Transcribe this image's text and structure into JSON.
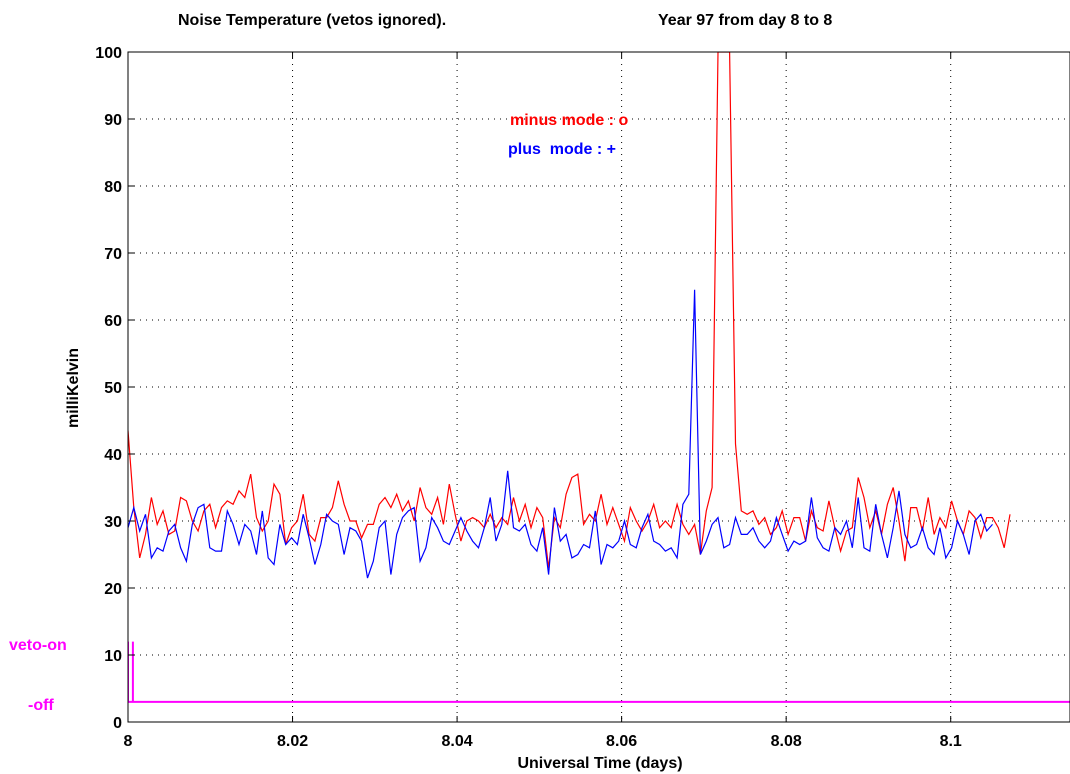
{
  "header": {
    "title": "Noise Temperature (vetos ignored).",
    "period": "Year 97 from day 8 to 8"
  },
  "veto_labels": {
    "on": "veto-on",
    "off": "-off"
  },
  "colors": {
    "minus": "#ff0000",
    "plus": "#0000ff",
    "veto": "#ff00ff",
    "axis": "#000000",
    "grid": "#000000"
  },
  "chart_data": {
    "type": "line",
    "xlabel": "Universal Time (days)",
    "ylabel": "milliKelvin",
    "xlim": [
      8,
      8.1145
    ],
    "ylim": [
      0,
      100
    ],
    "xticks": [
      8,
      8.02,
      8.04,
      8.06,
      8.08,
      8.1
    ],
    "xtick_labels": [
      "8",
      "8.02",
      "8.04",
      "8.06",
      "8.08",
      "8.1"
    ],
    "yticks": [
      0,
      10,
      20,
      30,
      40,
      50,
      60,
      70,
      80,
      90,
      100
    ],
    "ytick_labels": [
      "0",
      "10",
      "20",
      "30",
      "40",
      "50",
      "60",
      "70",
      "80",
      "90",
      "100"
    ],
    "grid": true,
    "legend": [
      {
        "text": "minus mode : o",
        "color": "#ff0000"
      },
      {
        "text": "plus  mode : +",
        "color": "#0000ff"
      }
    ],
    "series": [
      {
        "name": "minus mode",
        "color": "#ff0000",
        "x_start": 8.0,
        "x_step": 0.00071,
        "values": [
          43.5,
          32.0,
          24.5,
          28.0,
          33.5,
          29.5,
          31.5,
          28.0,
          28.5,
          33.5,
          33.0,
          30.0,
          28.5,
          31.5,
          32.5,
          29.0,
          32.0,
          33.0,
          32.5,
          34.5,
          33.5,
          37.0,
          30.5,
          28.5,
          30.0,
          35.5,
          34.0,
          26.5,
          29.0,
          30.0,
          34.0,
          28.0,
          27.0,
          30.5,
          30.5,
          32.0,
          36.0,
          32.5,
          30.0,
          30.0,
          27.5,
          29.5,
          29.5,
          32.5,
          33.5,
          32.0,
          34.0,
          31.5,
          33.0,
          30.0,
          35.0,
          32.0,
          31.0,
          33.5,
          29.5,
          35.5,
          31.0,
          27.0,
          30.0,
          30.5,
          30.0,
          29.0,
          31.0,
          29.0,
          30.5,
          29.5,
          33.5,
          30.0,
          32.5,
          29.0,
          32.0,
          30.5,
          23.0,
          30.5,
          29.0,
          34.0,
          36.5,
          37.0,
          29.5,
          31.0,
          30.0,
          34.0,
          29.5,
          32.0,
          29.5,
          27.0,
          32.0,
          30.0,
          28.5,
          30.0,
          32.5,
          29.0,
          30.0,
          29.0,
          32.5,
          29.5,
          28.0,
          29.5,
          25.0,
          31.5,
          35.0,
          100,
          100,
          100,
          41.5,
          31.5,
          31.0,
          31.5,
          29.5,
          30.5,
          28.0,
          29.0,
          31.5,
          28.0,
          30.5,
          30.5,
          27.0,
          31.5,
          29.0,
          28.5,
          33.0,
          29.0,
          25.5,
          28.5,
          29.0,
          36.5,
          33.5,
          29.0,
          31.5,
          28.0,
          32.5,
          35.0,
          30.0,
          24.0,
          32.0,
          32.0,
          28.5,
          33.5,
          28.0,
          30.5,
          29.0,
          33.0,
          30.0,
          28.0,
          31.5,
          30.5,
          27.5,
          30.5,
          30.5,
          29.0,
          26.0,
          31.0
        ]
      },
      {
        "name": "plus mode",
        "color": "#0000ff",
        "x_start": 8.0,
        "x_step": 0.00071,
        "values": [
          29.0,
          32.0,
          28.5,
          31.0,
          24.5,
          26.0,
          25.5,
          28.5,
          29.5,
          26.0,
          24.0,
          29.5,
          32.0,
          32.5,
          26.0,
          25.5,
          25.5,
          31.5,
          29.5,
          26.5,
          29.5,
          28.5,
          25.0,
          31.5,
          24.5,
          23.5,
          29.5,
          26.5,
          27.5,
          26.5,
          31.0,
          27.5,
          23.5,
          26.5,
          31.0,
          30.0,
          29.5,
          25.0,
          29.0,
          28.5,
          27.0,
          21.5,
          24.0,
          29.0,
          30.0,
          22.0,
          28.0,
          30.5,
          31.5,
          32.0,
          24.0,
          26.0,
          30.5,
          29.0,
          27.0,
          26.5,
          28.5,
          30.5,
          28.5,
          27.0,
          26.0,
          29.0,
          33.5,
          27.0,
          29.5,
          37.5,
          29.0,
          28.5,
          29.5,
          26.5,
          25.5,
          29.0,
          22.0,
          32.0,
          27.0,
          28.0,
          24.5,
          25.0,
          26.5,
          26.0,
          31.5,
          23.5,
          26.5,
          26.0,
          27.0,
          30.0,
          26.5,
          26.0,
          29.0,
          31.0,
          27.0,
          26.5,
          25.5,
          26.0,
          24.5,
          32.5,
          34.0,
          64.5,
          25.0,
          27.0,
          29.5,
          30.5,
          26.0,
          26.5,
          30.5,
          28.0,
          28.0,
          29.0,
          27.0,
          26.0,
          27.0,
          30.5,
          28.0,
          25.5,
          27.0,
          26.5,
          27.0,
          33.5,
          27.5,
          26.0,
          25.5,
          29.0,
          28.0,
          30.0,
          26.0,
          33.5,
          26.0,
          25.5,
          32.5,
          28.0,
          24.5,
          29.0,
          34.5,
          28.0,
          26.0,
          26.5,
          29.0,
          26.0,
          25.0,
          29.0,
          24.5,
          26.0,
          30.0,
          28.0,
          25.0,
          30.0,
          31.0,
          28.5,
          29.5
        ]
      },
      {
        "name": "veto",
        "color": "#ff00ff",
        "points": [
          [
            8.0,
            12.0
          ],
          [
            8.0,
            3.0
          ],
          [
            8.0006,
            3.0
          ],
          [
            8.0006,
            12.0
          ],
          [
            8.0006,
            3.0
          ],
          [
            8.1145,
            3.0
          ]
        ]
      }
    ]
  }
}
